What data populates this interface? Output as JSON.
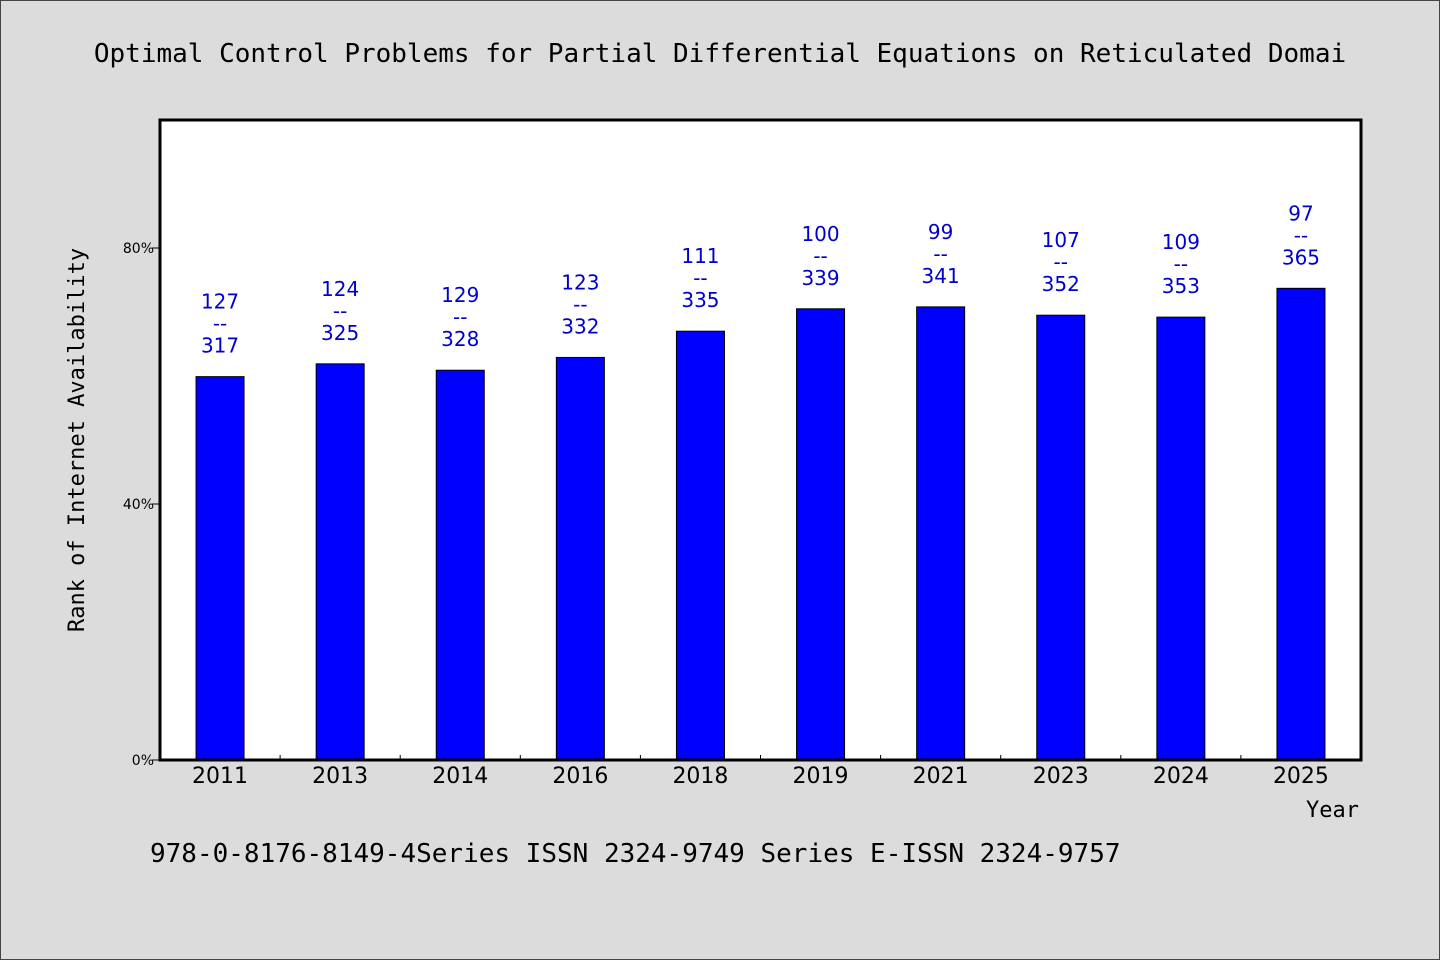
{
  "chart_data": {
    "type": "bar",
    "title": "Optimal Control Problems for Partial Differential Equations on Reticulated Domai",
    "xlabel": "Year",
    "ylabel": "Rank of Internet Availability",
    "categories": [
      "2011",
      "2013",
      "2014",
      "2016",
      "2018",
      "2019",
      "2021",
      "2023",
      "2024",
      "2025"
    ],
    "values": [
      59.9,
      61.9,
      60.9,
      62.9,
      67.0,
      70.5,
      70.8,
      69.5,
      69.2,
      73.7
    ],
    "value_labels": [
      [
        "127",
        "--",
        "317"
      ],
      [
        "124",
        "--",
        "325"
      ],
      [
        "129",
        "--",
        "328"
      ],
      [
        "123",
        "--",
        "332"
      ],
      [
        "111",
        "--",
        "335"
      ],
      [
        "100",
        "--",
        "339"
      ],
      [
        "99",
        "--",
        "341"
      ],
      [
        "107",
        "--",
        "352"
      ],
      [
        "109",
        "--",
        "353"
      ],
      [
        "97",
        "--",
        "365"
      ]
    ],
    "ylim": [
      0,
      100
    ],
    "yticks": [
      0,
      40,
      80
    ],
    "ytick_labels": [
      "0%",
      "40%",
      "80%"
    ],
    "grid": false,
    "legend": "none",
    "colors": {
      "bar": "#0000ff",
      "bar_edge": "#000000",
      "data_label": "#0000cc",
      "plot_bg": "#ffffff",
      "page_bg": "#dcdcdc"
    }
  },
  "footer": "978-0-8176-8149-4Series ISSN 2324-9749 Series E-ISSN 2324-9757"
}
